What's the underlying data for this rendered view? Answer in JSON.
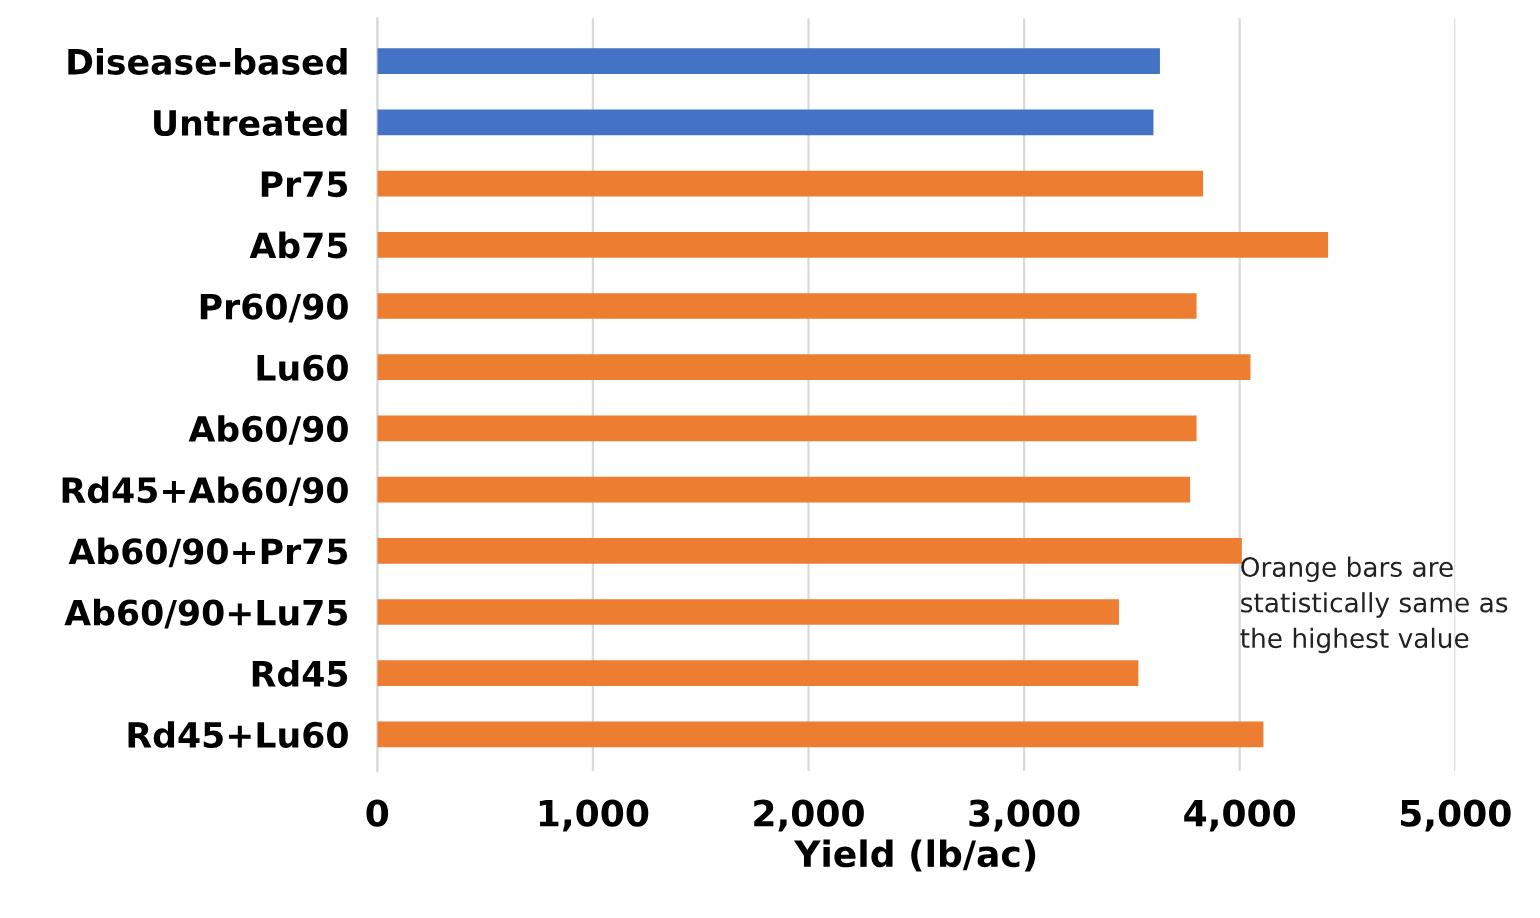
{
  "chart_data": {
    "type": "bar",
    "orientation": "horizontal",
    "xlabel": "Yield (lb/ac)",
    "categories": [
      "Disease-based",
      "Untreated",
      "Pr75",
      "Ab75",
      "Pr60/90",
      "Lu60",
      "Ab60/90",
      "Rd45+Ab60/90",
      "Ab60/90+Pr75",
      "Ab60/90+Lu75",
      "Rd45",
      "Rd45+Lu60"
    ],
    "values": [
      3630,
      3600,
      3830,
      4410,
      3800,
      4050,
      3800,
      3770,
      4010,
      3440,
      3530,
      4110
    ],
    "colors": [
      "#4472c4",
      "#4472c4",
      "#ed7d31",
      "#ed7d31",
      "#ed7d31",
      "#ed7d31",
      "#ed7d31",
      "#ed7d31",
      "#ed7d31",
      "#ed7d31",
      "#ed7d31",
      "#ed7d31"
    ],
    "xlim": [
      0,
      5000
    ],
    "xticks": [
      {
        "value": 0,
        "label": "0"
      },
      {
        "value": 1000,
        "label": "1,000"
      },
      {
        "value": 2000,
        "label": "2,000"
      },
      {
        "value": 3000,
        "label": "3,000"
      },
      {
        "value": 4000,
        "label": "4,000"
      },
      {
        "value": 5000,
        "label": "5,000"
      }
    ],
    "grid": "x",
    "annotations": [
      "Orange bars are\nstatistically same as\nthe highest value"
    ]
  }
}
